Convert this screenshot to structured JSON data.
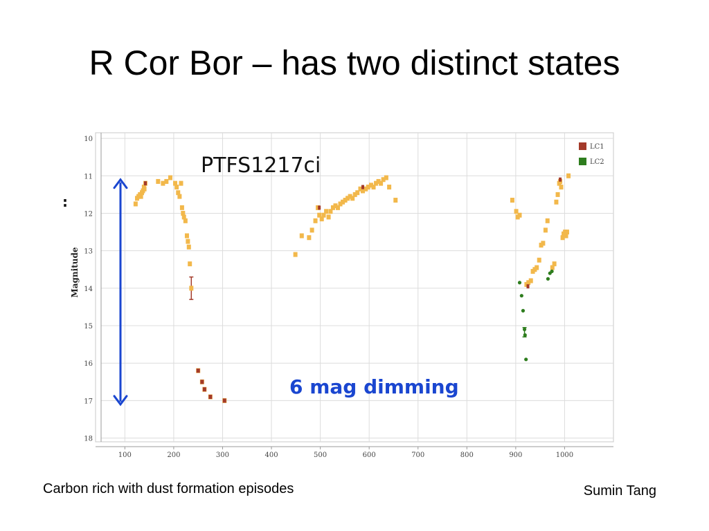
{
  "slide": {
    "title": "R Cor Bor – has two distinct states",
    "caption_left": "Carbon rich with dust formation episodes",
    "caption_right": "Sumin Tang"
  },
  "chart_data": {
    "type": "scatter",
    "title": "PTFS1217ci",
    "xlabel": "",
    "ylabel": "Magnitude",
    "xlim": [
      40,
      1100
    ],
    "ylim": [
      18.1,
      9.85
    ],
    "y_inverted": true,
    "grid": true,
    "legend_position": "top-right",
    "x_ticks": [
      "100",
      "200",
      "300",
      "400",
      "500",
      "600",
      "700",
      "800",
      "900",
      "1000"
    ],
    "y_ticks": [
      "10",
      "11",
      "12",
      "13",
      "14",
      "15",
      "16",
      "17",
      "18"
    ],
    "annotations": [
      {
        "text": "6 mag dimming",
        "arrow_from": [
          91,
          11.1
        ],
        "arrow_to": [
          91,
          17.1
        ],
        "color": "#1a46d0"
      },
      {
        "text": "PTFS1217ci"
      },
      {
        "text": ":"
      }
    ],
    "series": [
      {
        "name": "LC1",
        "color": "#a33a2a",
        "marker": "#f2b84b",
        "points": [
          [
            122,
            11.75
          ],
          [
            125,
            11.6
          ],
          [
            128,
            11.55
          ],
          [
            131,
            11.5
          ],
          [
            133,
            11.55
          ],
          [
            135,
            11.45
          ],
          [
            137,
            11.4
          ],
          [
            139,
            11.3
          ],
          [
            140,
            11.35
          ],
          [
            142,
            11.2
          ],
          [
            168,
            11.15
          ],
          [
            178,
            11.2
          ],
          [
            185,
            11.15
          ],
          [
            193,
            11.05
          ],
          [
            203,
            11.2
          ],
          [
            206,
            11.3
          ],
          [
            209,
            11.45
          ],
          [
            212,
            11.55
          ],
          [
            215,
            11.2
          ],
          [
            217,
            11.85
          ],
          [
            219,
            12.0
          ],
          [
            221,
            12.1
          ],
          [
            224,
            12.2
          ],
          [
            227,
            12.6
          ],
          [
            229,
            12.75
          ],
          [
            231,
            12.9
          ],
          [
            233,
            13.35
          ],
          [
            236,
            14.0
          ],
          [
            250,
            16.2
          ],
          [
            258,
            16.5
          ],
          [
            263,
            16.7
          ],
          [
            275,
            16.9
          ],
          [
            304,
            17.0
          ],
          [
            449,
            13.1
          ],
          [
            462,
            12.6
          ],
          [
            477,
            12.65
          ],
          [
            483,
            12.45
          ],
          [
            490,
            12.2
          ],
          [
            495,
            11.85
          ],
          [
            498,
            12.05
          ],
          [
            503,
            12.15
          ],
          [
            507,
            12.05
          ],
          [
            512,
            11.95
          ],
          [
            517,
            12.1
          ],
          [
            521,
            11.95
          ],
          [
            526,
            11.85
          ],
          [
            531,
            11.8
          ],
          [
            536,
            11.85
          ],
          [
            541,
            11.75
          ],
          [
            546,
            11.7
          ],
          [
            551,
            11.65
          ],
          [
            556,
            11.6
          ],
          [
            561,
            11.55
          ],
          [
            566,
            11.6
          ],
          [
            571,
            11.5
          ],
          [
            576,
            11.45
          ],
          [
            582,
            11.35
          ],
          [
            587,
            11.4
          ],
          [
            593,
            11.35
          ],
          [
            598,
            11.3
          ],
          [
            604,
            11.25
          ],
          [
            609,
            11.3
          ],
          [
            614,
            11.2
          ],
          [
            619,
            11.15
          ],
          [
            624,
            11.2
          ],
          [
            629,
            11.1
          ],
          [
            635,
            11.05
          ],
          [
            641,
            11.3
          ],
          [
            654,
            11.65
          ],
          [
            893,
            11.65
          ],
          [
            901,
            11.95
          ],
          [
            904,
            12.1
          ],
          [
            908,
            12.05
          ],
          [
            922,
            13.9
          ],
          [
            926,
            13.85
          ],
          [
            931,
            13.8
          ],
          [
            935,
            13.55
          ],
          [
            939,
            13.5
          ],
          [
            943,
            13.45
          ],
          [
            948,
            13.25
          ],
          [
            952,
            12.85
          ],
          [
            956,
            12.8
          ],
          [
            961,
            12.45
          ],
          [
            965,
            12.2
          ],
          [
            975,
            13.45
          ],
          [
            979,
            13.35
          ],
          [
            983,
            11.7
          ],
          [
            986,
            11.5
          ],
          [
            989,
            11.2
          ],
          [
            991,
            11.15
          ],
          [
            993,
            11.3
          ],
          [
            996,
            12.65
          ],
          [
            998,
            12.55
          ],
          [
            1001,
            12.5
          ],
          [
            1003,
            12.6
          ],
          [
            1005,
            12.5
          ],
          [
            1008,
            11.0
          ]
        ]
      },
      {
        "name": "LC2",
        "color": "#2e7d1e",
        "marker": "#2e7d1e",
        "points": [
          [
            908,
            13.85
          ],
          [
            912,
            14.2
          ],
          [
            915,
            14.6
          ],
          [
            918,
            15.1
          ],
          [
            919,
            15.25
          ],
          [
            921,
            15.9
          ],
          [
            966,
            13.75
          ],
          [
            970,
            13.6
          ],
          [
            974,
            13.55
          ]
        ]
      }
    ],
    "error_bars": [
      {
        "x": 236,
        "y_low": 13.7,
        "y_high": 14.3
      },
      {
        "x": 918,
        "y_low": 15.05,
        "y_high": 15.3
      }
    ]
  }
}
